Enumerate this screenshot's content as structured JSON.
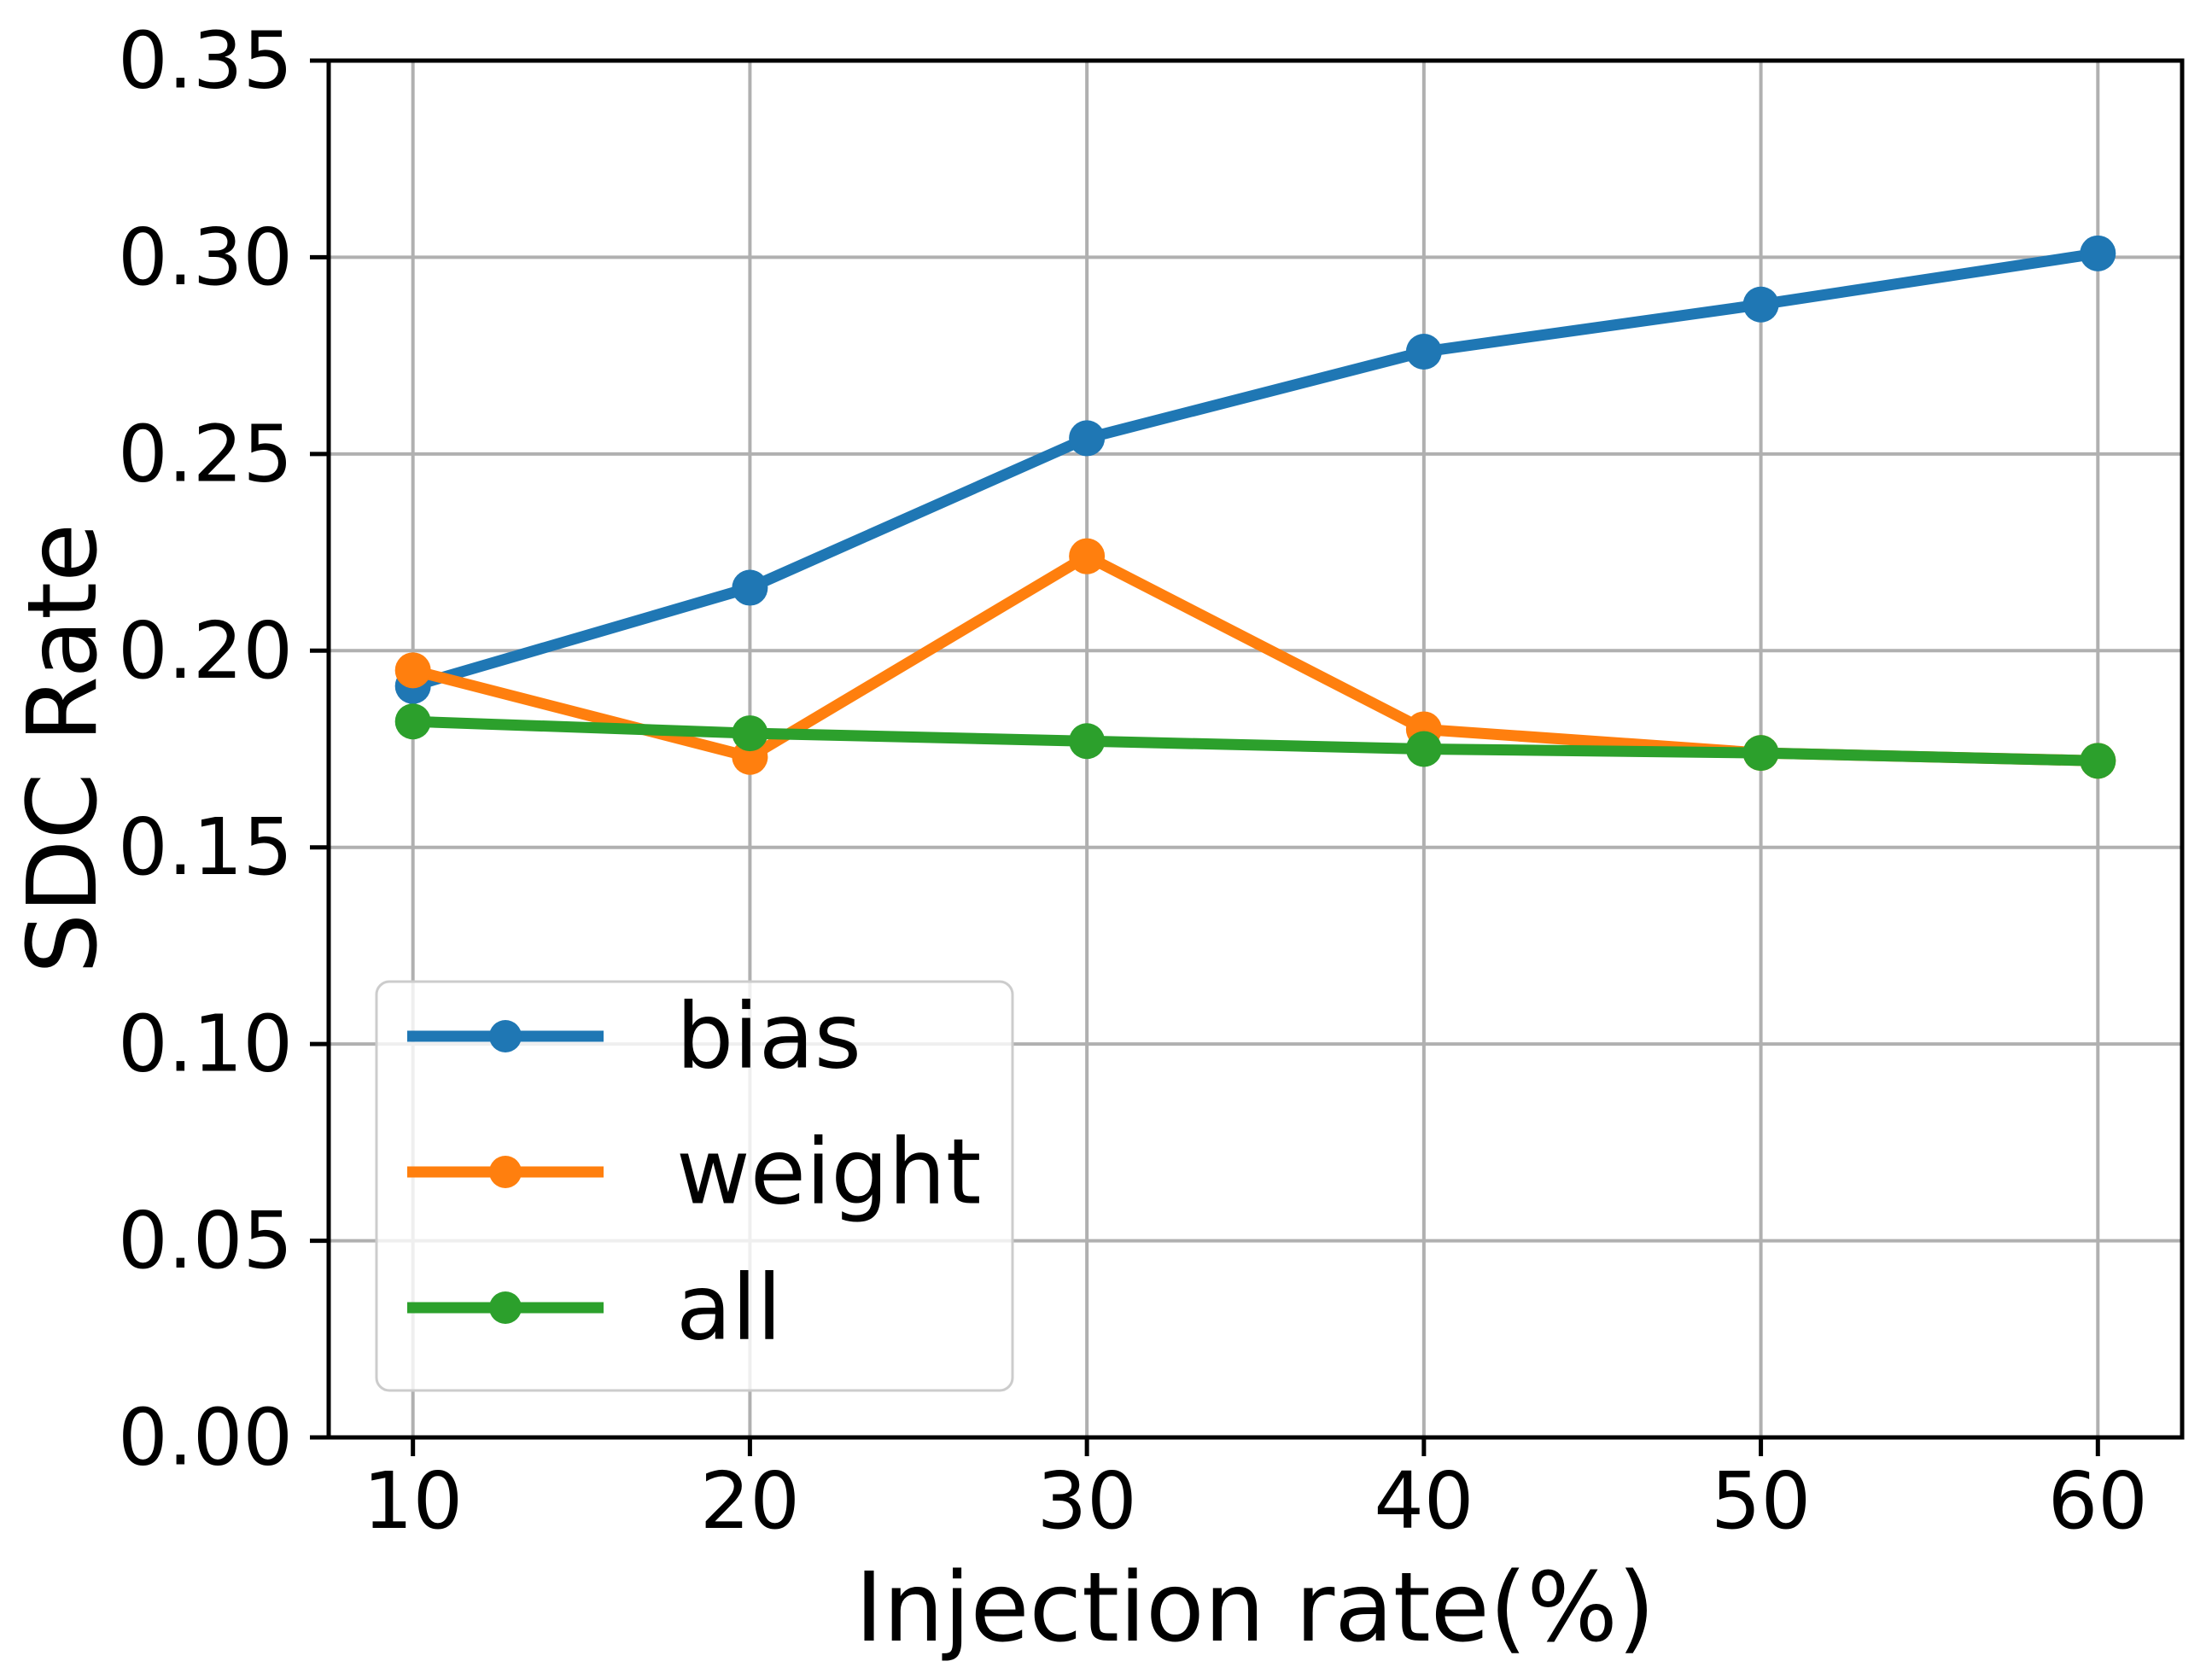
{
  "chart_data": {
    "type": "line",
    "title": "",
    "xlabel": "Injection rate(%)",
    "ylabel": "SDC Rate",
    "x": [
      10,
      20,
      30,
      40,
      50,
      60
    ],
    "series": [
      {
        "name": "bias",
        "color": "#1f77b4",
        "values": [
          0.191,
          0.216,
          0.254,
          0.276,
          0.288,
          0.301
        ]
      },
      {
        "name": "weight",
        "color": "#ff7f0e",
        "values": [
          0.195,
          0.173,
          0.224,
          0.18,
          0.174,
          0.172
        ]
      },
      {
        "name": "all",
        "color": "#2ca02c",
        "values": [
          0.182,
          0.179,
          0.177,
          0.175,
          0.174,
          0.172
        ]
      }
    ],
    "xlim": [
      7.5,
      62.5
    ],
    "ylim": [
      0,
      0.35
    ],
    "xticks": [
      10,
      20,
      30,
      40,
      50,
      60
    ],
    "xtick_labels": [
      "10",
      "20",
      "30",
      "40",
      "50",
      "60"
    ],
    "yticks": [
      0,
      0.05,
      0.1,
      0.15,
      0.2,
      0.25,
      0.3,
      0.35
    ],
    "ytick_labels": [
      "0.00",
      "0.05",
      "0.10",
      "0.15",
      "0.20",
      "0.25",
      "0.30",
      "0.35"
    ],
    "grid": true,
    "grid_color": "#b0b0b0",
    "spine_color": "#000000",
    "legend": {
      "position": "lower left",
      "edge_color": "#cccccc",
      "entries": [
        "bias",
        "weight",
        "all"
      ]
    }
  }
}
